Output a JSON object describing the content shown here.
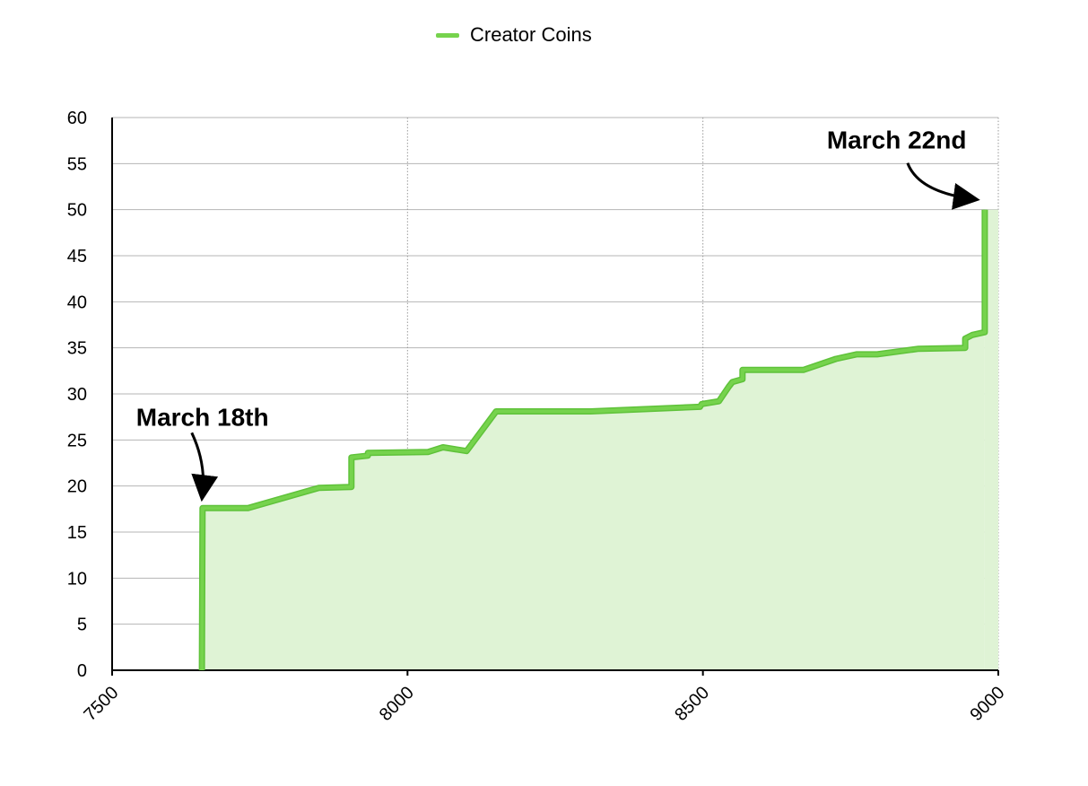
{
  "chart_data": {
    "type": "area",
    "title": "",
    "xlabel": "",
    "ylabel": "",
    "xlim": [
      7500,
      9000
    ],
    "ylim": [
      0,
      60
    ],
    "x_ticks": [
      "7500",
      "8000",
      "8500",
      "9000"
    ],
    "y_ticks": [
      "0",
      "5",
      "10",
      "15",
      "20",
      "25",
      "30",
      "35",
      "40",
      "45",
      "50",
      "55",
      "60"
    ],
    "grid": true,
    "legend_position": "top-center",
    "series": [
      {
        "name": "Creator Coins",
        "color": "#76d34d",
        "fill_color": "#dff3d5",
        "points": [
          [
            7652,
            0
          ],
          [
            7653,
            17.6
          ],
          [
            7730,
            17.6
          ],
          [
            7850,
            19.8
          ],
          [
            7905,
            19.9
          ],
          [
            7905,
            23.1
          ],
          [
            7933,
            23.3
          ],
          [
            7933,
            23.6
          ],
          [
            8035,
            23.7
          ],
          [
            8060,
            24.2
          ],
          [
            8100,
            23.8
          ],
          [
            8150,
            28.1
          ],
          [
            8310,
            28.1
          ],
          [
            8495,
            28.6
          ],
          [
            8498,
            28.9
          ],
          [
            8527,
            29.2
          ],
          [
            8544,
            30.8
          ],
          [
            8550,
            31.3
          ],
          [
            8567,
            31.6
          ],
          [
            8567,
            32.6
          ],
          [
            8670,
            32.6
          ],
          [
            8725,
            33.8
          ],
          [
            8760,
            34.3
          ],
          [
            8795,
            34.3
          ],
          [
            8865,
            34.9
          ],
          [
            8944,
            35.0
          ],
          [
            8944,
            36.0
          ],
          [
            8956,
            36.4
          ],
          [
            8977,
            36.7
          ],
          [
            8977,
            50
          ]
        ]
      }
    ],
    "annotations": [
      {
        "text": "March 18th",
        "x": 7653,
        "y": 17.6
      },
      {
        "text": "March 22nd",
        "x": 8977,
        "y": 50
      }
    ]
  }
}
